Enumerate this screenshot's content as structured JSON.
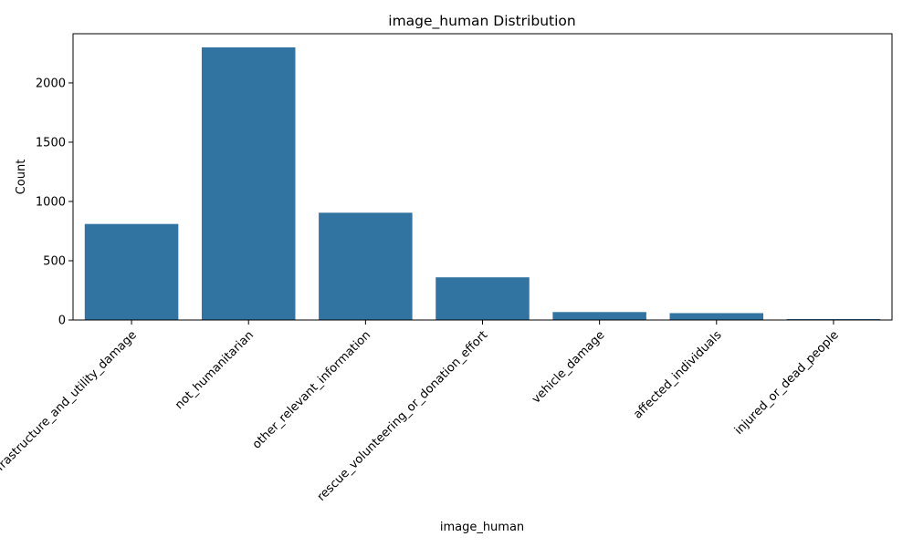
{
  "chart_data": {
    "type": "bar",
    "title": "image_human Distribution",
    "xlabel": "image_human",
    "ylabel": "Count",
    "categories": [
      "infrastructure_and_utility_damage",
      "not_humanitarian",
      "other_relevant_information",
      "rescue_volunteering_or_donation_effort",
      "vehicle_damage",
      "affected_individuals",
      "injured_or_dead_people"
    ],
    "values": [
      810,
      2300,
      905,
      360,
      67,
      58,
      8
    ],
    "ylim": [
      0,
      2415
    ],
    "yticks": [
      0,
      500,
      1000,
      1500,
      2000
    ],
    "x_tick_rotation": 45,
    "grid": false,
    "legend": "none",
    "bar_color": "#3274a1"
  }
}
